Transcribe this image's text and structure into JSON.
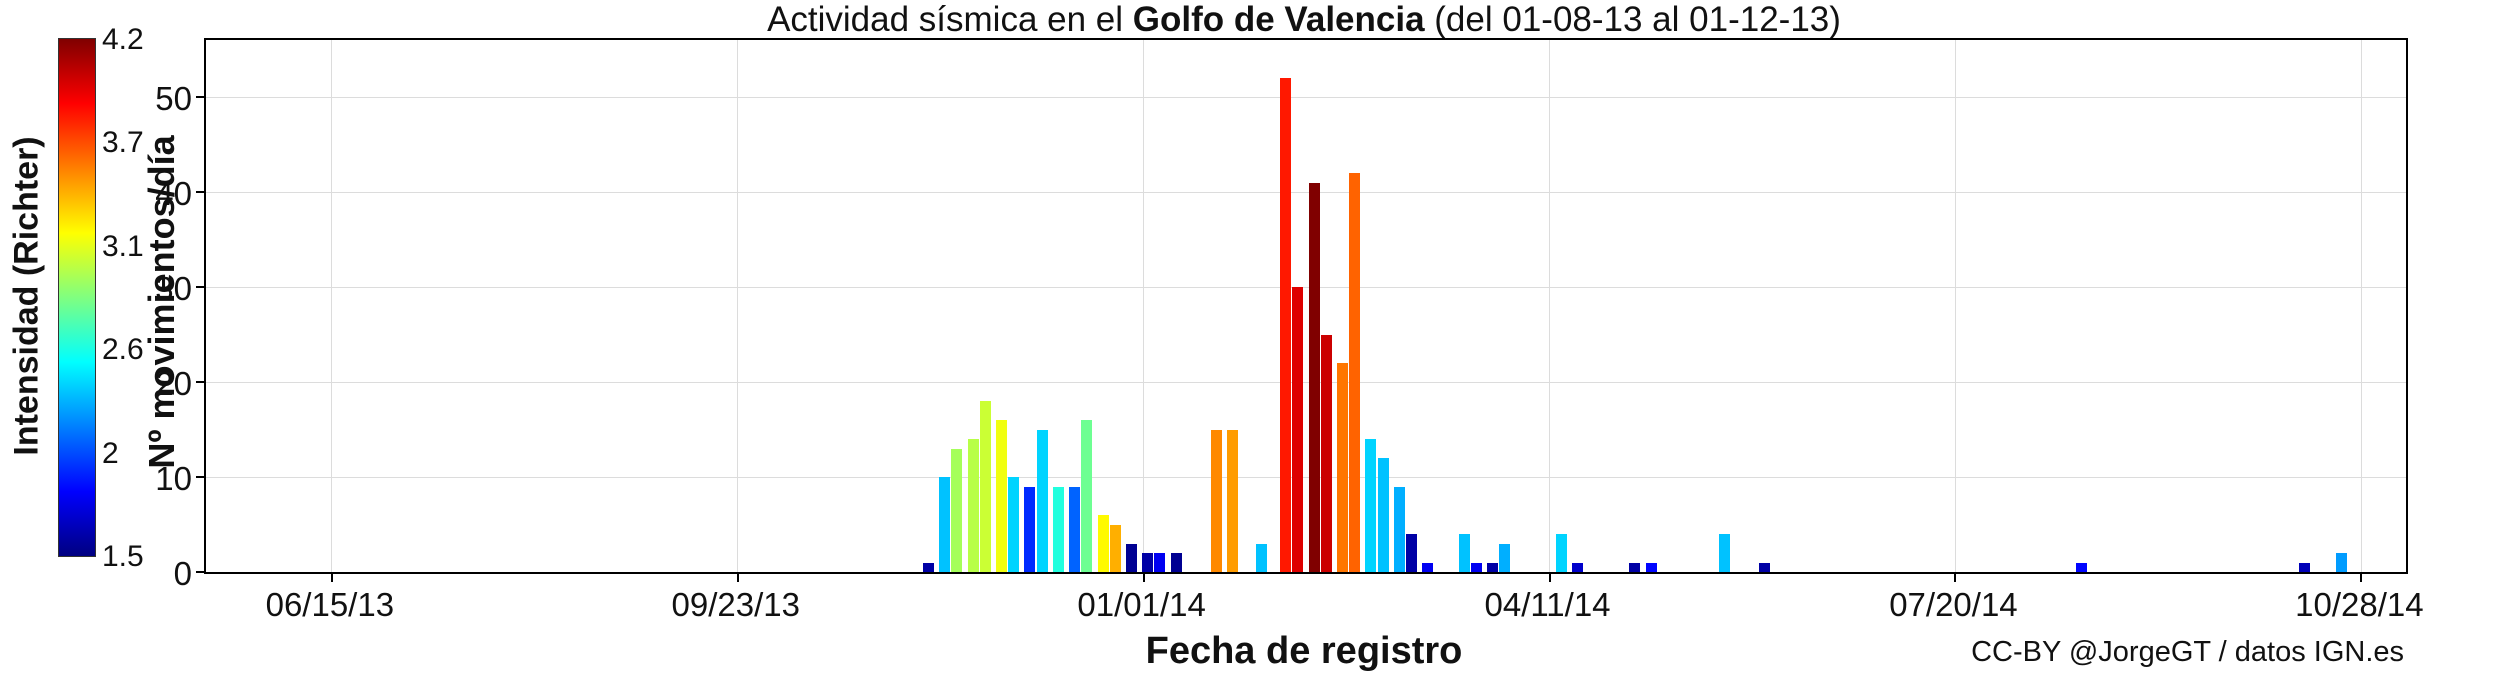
{
  "header": {
    "prefix": "Actividad sísmica en el ",
    "bold": "Golfo de Valencia",
    "suffix": " (del 01-08-13 al 01-12-13)"
  },
  "credit": "CC-BY @JorgeGT / datos IGN.es",
  "chart_data": {
    "type": "bar",
    "title": "Actividad sísmica en el Golfo de Valencia (del 01-08-13 al 01-12-13)",
    "xlabel": "Fecha de registro",
    "ylabel": "Nº movimientos/día",
    "grid": true,
    "ylim": [
      0,
      56
    ],
    "yticks": [
      0,
      10,
      20,
      30,
      40,
      50
    ],
    "ytick_labels": [
      "0",
      "10",
      "20",
      "30",
      "40",
      "50"
    ],
    "x_axis": {
      "start_date": "2013-05-15",
      "end_date": "2014-11-08",
      "tick_dates": [
        "2013-06-15",
        "2013-09-23",
        "2014-01-01",
        "2014-04-11",
        "2014-07-20",
        "2014-10-28"
      ],
      "tick_labels": [
        "06/15/13",
        "09/23/13",
        "01/01/14",
        "04/11/14",
        "07/20/14",
        "10/28/14"
      ]
    },
    "colorbar": {
      "label": "Intensidad (Richter)",
      "min": 1.5,
      "max": 4.2,
      "tick_labels": [
        "4.2",
        "3.7",
        "3.1",
        "2.6",
        "2",
        "1.5"
      ],
      "colormap": "jet"
    },
    "bars": [
      {
        "date": "2013-11-09",
        "count": 1,
        "intensity": 1.6
      },
      {
        "date": "2013-11-13",
        "count": 10,
        "intensity": 2.35
      },
      {
        "date": "2013-11-16",
        "count": 13,
        "intensity": 2.95
      },
      {
        "date": "2013-11-20",
        "count": 14,
        "intensity": 3.0
      },
      {
        "date": "2013-11-23",
        "count": 18,
        "intensity": 3.05
      },
      {
        "date": "2013-11-27",
        "count": 16,
        "intensity": 3.15
      },
      {
        "date": "2013-11-30",
        "count": 10,
        "intensity": 2.4
      },
      {
        "date": "2013-12-04",
        "count": 9,
        "intensity": 1.95
      },
      {
        "date": "2013-12-07",
        "count": 15,
        "intensity": 2.4
      },
      {
        "date": "2013-12-11",
        "count": 9,
        "intensity": 2.6
      },
      {
        "date": "2013-12-15",
        "count": 9,
        "intensity": 2.1
      },
      {
        "date": "2013-12-18",
        "count": 16,
        "intensity": 2.8
      },
      {
        "date": "2013-12-22",
        "count": 6,
        "intensity": 3.2
      },
      {
        "date": "2013-12-25",
        "count": 5,
        "intensity": 3.4
      },
      {
        "date": "2013-12-29",
        "count": 3,
        "intensity": 1.55
      },
      {
        "date": "2014-01-02",
        "count": 2,
        "intensity": 1.6
      },
      {
        "date": "2014-01-05",
        "count": 2,
        "intensity": 1.8
      },
      {
        "date": "2014-01-09",
        "count": 2,
        "intensity": 1.55
      },
      {
        "date": "2014-01-19",
        "count": 15,
        "intensity": 3.5
      },
      {
        "date": "2014-01-23",
        "count": 15,
        "intensity": 3.45
      },
      {
        "date": "2014-01-30",
        "count": 3,
        "intensity": 2.35
      },
      {
        "date": "2014-02-05",
        "count": 52,
        "intensity": 3.8
      },
      {
        "date": "2014-02-08",
        "count": 30,
        "intensity": 3.95
      },
      {
        "date": "2014-02-12",
        "count": 41,
        "intensity": 4.2
      },
      {
        "date": "2014-02-15",
        "count": 25,
        "intensity": 4.0
      },
      {
        "date": "2014-02-19",
        "count": 22,
        "intensity": 3.55
      },
      {
        "date": "2014-02-22",
        "count": 42,
        "intensity": 3.6
      },
      {
        "date": "2014-02-26",
        "count": 14,
        "intensity": 2.4
      },
      {
        "date": "2014-03-01",
        "count": 12,
        "intensity": 2.35
      },
      {
        "date": "2014-03-05",
        "count": 9,
        "intensity": 2.3
      },
      {
        "date": "2014-03-08",
        "count": 4,
        "intensity": 1.6
      },
      {
        "date": "2014-03-12",
        "count": 1,
        "intensity": 1.8
      },
      {
        "date": "2014-03-21",
        "count": 4,
        "intensity": 2.35
      },
      {
        "date": "2014-03-24",
        "count": 1,
        "intensity": 1.8
      },
      {
        "date": "2014-03-28",
        "count": 1,
        "intensity": 1.6
      },
      {
        "date": "2014-03-31",
        "count": 3,
        "intensity": 2.3
      },
      {
        "date": "2014-04-14",
        "count": 4,
        "intensity": 2.4
      },
      {
        "date": "2014-04-18",
        "count": 1,
        "intensity": 1.7
      },
      {
        "date": "2014-05-02",
        "count": 1,
        "intensity": 1.6
      },
      {
        "date": "2014-05-06",
        "count": 1,
        "intensity": 1.85
      },
      {
        "date": "2014-05-24",
        "count": 4,
        "intensity": 2.35
      },
      {
        "date": "2014-06-03",
        "count": 1,
        "intensity": 1.6
      },
      {
        "date": "2014-08-20",
        "count": 1,
        "intensity": 1.85
      },
      {
        "date": "2014-10-14",
        "count": 1,
        "intensity": 1.65
      },
      {
        "date": "2014-10-23",
        "count": 2,
        "intensity": 2.25
      }
    ]
  }
}
